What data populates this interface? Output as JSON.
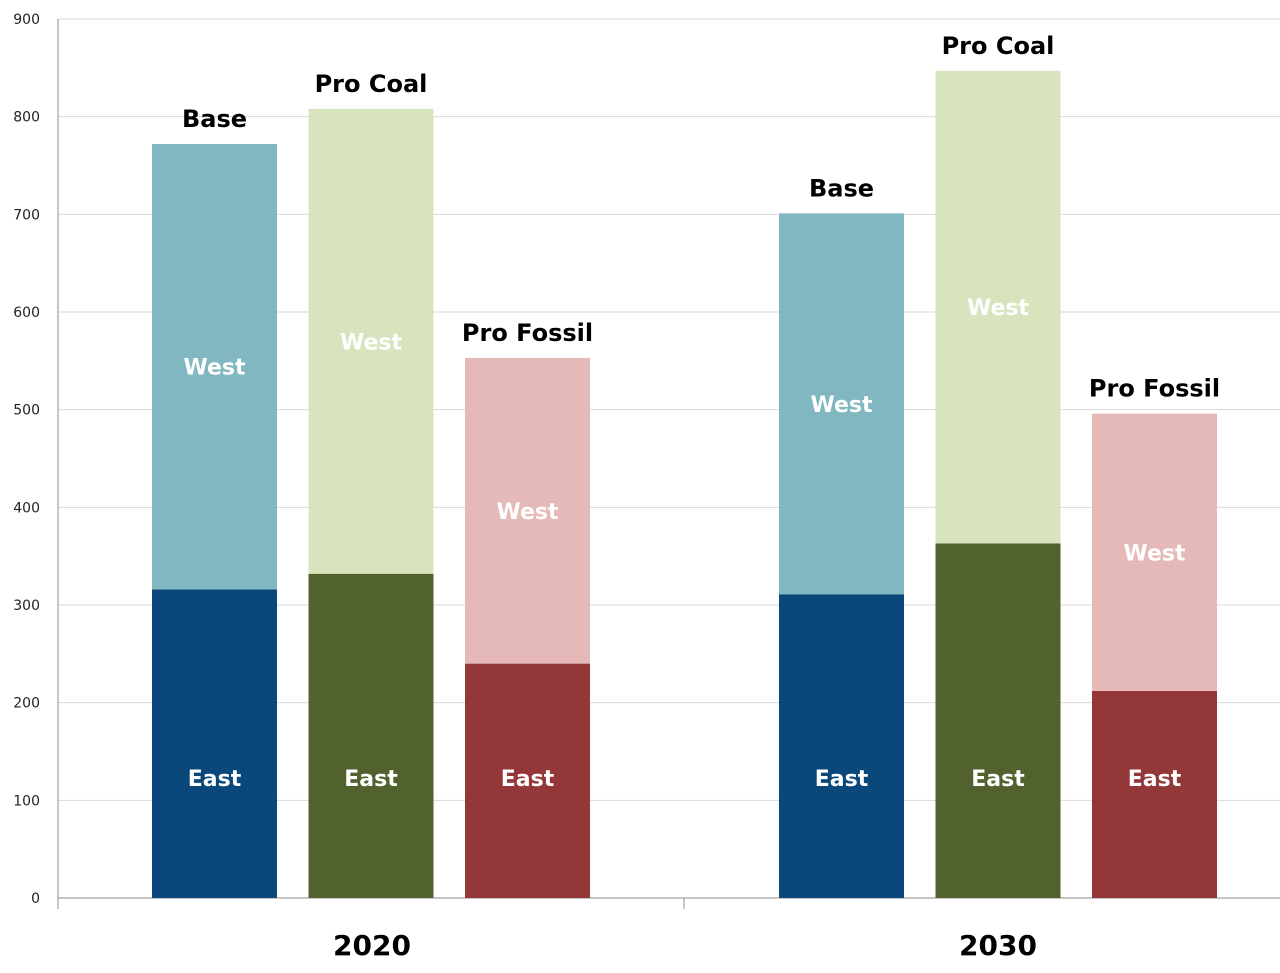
{
  "chart_data": {
    "type": "bar",
    "stacked": true,
    "title": "",
    "xlabel": "",
    "ylabel": "",
    "ylim": [
      0,
      900
    ],
    "yticks": [
      0,
      100,
      200,
      300,
      400,
      500,
      600,
      700,
      800,
      900
    ],
    "grid": true,
    "legend": "none",
    "groups": [
      {
        "label": "2020",
        "bars": [
          {
            "name": "Base",
            "segments": [
              {
                "label": "East",
                "value": 316,
                "color": "#0a487c"
              },
              {
                "label": "West",
                "value": 456,
                "color": "#80b7c0"
              }
            ]
          },
          {
            "name": "Pro Coal",
            "segments": [
              {
                "label": "East",
                "value": 332,
                "color": "#51622f"
              },
              {
                "label": "West",
                "value": 476,
                "color": "#d7e4bd"
              }
            ]
          },
          {
            "name": "Pro Fossil",
            "segments": [
              {
                "label": "East",
                "value": 240,
                "color": "#943739"
              },
              {
                "label": "West",
                "value": 313,
                "color": "#e5b9b8"
              }
            ]
          }
        ]
      },
      {
        "label": "2030",
        "bars": [
          {
            "name": "Base",
            "segments": [
              {
                "label": "East",
                "value": 311,
                "color": "#0a487c"
              },
              {
                "label": "West",
                "value": 390,
                "color": "#80b7c0"
              }
            ]
          },
          {
            "name": "Pro Coal",
            "segments": [
              {
                "label": "East",
                "value": 363,
                "color": "#51622f"
              },
              {
                "label": "West",
                "value": 484,
                "color": "#d7e4bd"
              }
            ]
          },
          {
            "name": "Pro Fossil",
            "segments": [
              {
                "label": "East",
                "value": 212,
                "color": "#943739"
              },
              {
                "label": "West",
                "value": 284,
                "color": "#e5b9b8"
              }
            ]
          }
        ]
      }
    ]
  }
}
